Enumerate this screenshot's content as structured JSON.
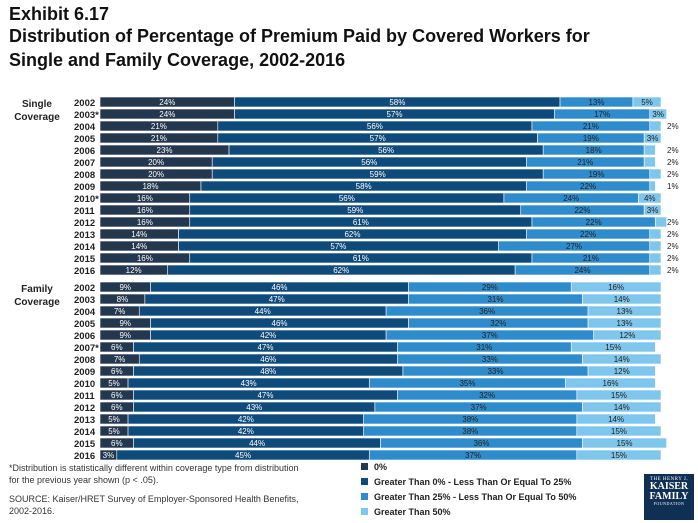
{
  "header": {
    "exhibit": "Exhibit 6.17",
    "title_line1": "Distribution of Percentage of Premium Paid by Covered Workers for",
    "title_line2": "Single and Family Coverage, 2002-2016"
  },
  "footnote": "*Distribution is statistically different within coverage type from distribution for the previous year shown (p < .05).",
  "source": "SOURCE:  Kaiser/HRET Survey of Employer-Sponsored Health Benefits, 2002-2016.",
  "logo": {
    "top": "THE HENRY J.",
    "line1": "KAISER",
    "line2": "FAMILY",
    "bottom": "FOUNDATION"
  },
  "colors": [
    "#23374f",
    "#0e4a7a",
    "#2e8ccc",
    "#7fc6ec"
  ],
  "legend": [
    "0%",
    "Greater Than 0% - Less Than Or Equal To 25%",
    "Greater Than 25% - Less Than Or Equal To 50%",
    "Greater Than 50%"
  ],
  "chart_data": [
    {
      "type": "bar",
      "orientation": "horizontal",
      "stacked": true,
      "group_label": "Single Coverage",
      "categories": [
        "2002",
        "2003*",
        "2004",
        "2005",
        "2006",
        "2007",
        "2008",
        "2009",
        "2010*",
        "2011",
        "2012",
        "2013",
        "2014",
        "2015",
        "2016"
      ],
      "series": [
        {
          "name": "0%",
          "values": [
            24,
            24,
            21,
            21,
            23,
            20,
            20,
            18,
            16,
            16,
            16,
            14,
            14,
            16,
            12
          ]
        },
        {
          "name": "Greater Than 0% - Less Than Or Equal To 25%",
          "values": [
            58,
            57,
            56,
            57,
            56,
            56,
            59,
            58,
            56,
            59,
            61,
            62,
            57,
            61,
            62
          ]
        },
        {
          "name": "Greater Than 25% - Less Than Or Equal To 50%",
          "values": [
            13,
            17,
            21,
            19,
            18,
            21,
            19,
            22,
            24,
            22,
            22,
            22,
            27,
            21,
            24
          ]
        },
        {
          "name": "Greater Than 50%",
          "values": [
            5,
            3,
            2,
            3,
            2,
            2,
            2,
            1,
            4,
            3,
            2,
            2,
            2,
            2,
            2
          ]
        }
      ],
      "xlim": [
        0,
        100
      ]
    },
    {
      "type": "bar",
      "orientation": "horizontal",
      "stacked": true,
      "group_label": "Family Coverage",
      "categories": [
        "2002",
        "2003",
        "2004",
        "2005",
        "2006",
        "2007*",
        "2008",
        "2009",
        "2010",
        "2011",
        "2012",
        "2013",
        "2014",
        "2015",
        "2016"
      ],
      "series": [
        {
          "name": "0%",
          "values": [
            9,
            8,
            7,
            9,
            9,
            6,
            7,
            6,
            5,
            6,
            6,
            5,
            5,
            6,
            3
          ]
        },
        {
          "name": "Greater Than 0% - Less Than Or Equal To 25%",
          "values": [
            46,
            47,
            44,
            46,
            42,
            47,
            46,
            48,
            43,
            47,
            43,
            42,
            42,
            44,
            45
          ]
        },
        {
          "name": "Greater Than 25% - Less Than Or Equal To 50%",
          "values": [
            29,
            31,
            36,
            32,
            37,
            31,
            33,
            33,
            35,
            32,
            37,
            38,
            38,
            36,
            37
          ]
        },
        {
          "name": "Greater Than 50%",
          "values": [
            16,
            14,
            13,
            13,
            12,
            15,
            14,
            12,
            16,
            15,
            14,
            14,
            15,
            15,
            15
          ]
        }
      ],
      "xlim": [
        0,
        100
      ]
    }
  ]
}
